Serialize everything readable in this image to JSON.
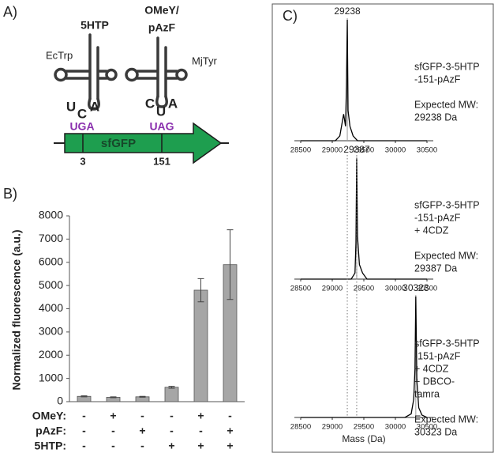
{
  "panel_labels": [
    "A)",
    "B)",
    "C)"
  ],
  "diagram": {
    "trna_1": {
      "amino_acid": "5HTP",
      "name": "EcTrp",
      "anticodon": [
        "U",
        "C",
        "A"
      ]
    },
    "trna_2": {
      "amino_acid_lines": [
        "OMeY/",
        "pAzF"
      ],
      "name": "MjTyr",
      "anticodon": [
        "C",
        "U",
        "A"
      ]
    },
    "gene": {
      "name": "sfGFP",
      "codons": [
        "UGA",
        "UAG"
      ],
      "positions": [
        "3",
        "151"
      ]
    }
  },
  "chart_data": [
    {
      "type": "bar",
      "ylabel": "Normalized fluorescence (a.u.)",
      "values": [
        230,
        190,
        210,
        620,
        4800,
        5900
      ],
      "errors": [
        20,
        20,
        20,
        40,
        500,
        1500
      ],
      "color": "#a6a6a6",
      "ylim": [
        0,
        8000
      ],
      "yticks": [
        0,
        1000,
        2000,
        3000,
        4000,
        5000,
        6000,
        7000,
        8000
      ],
      "conditions": [
        {
          "name": "OMeY:",
          "values": [
            "-",
            "+",
            "-",
            "-",
            "+",
            "-"
          ]
        },
        {
          "name": "pAzF:",
          "values": [
            "-",
            "-",
            "+",
            "-",
            "-",
            "+"
          ]
        },
        {
          "name": "5HTP:",
          "values": [
            "-",
            "-",
            "-",
            "+",
            "+",
            "+"
          ]
        }
      ]
    },
    {
      "type": "line",
      "color": "#000000",
      "peak": 29238,
      "x": [
        28500,
        29050,
        29120,
        29180,
        29210,
        29225,
        29238,
        29250,
        29280,
        29330,
        29400,
        30500
      ],
      "values": [
        0,
        0,
        4,
        22,
        12,
        45,
        100,
        25,
        12,
        4,
        0,
        0
      ],
      "xlim": [
        28500,
        30500
      ],
      "xticks": [
        28500,
        29000,
        29500,
        30000,
        30500
      ],
      "ylim": [
        0,
        100
      ],
      "label_lines": [
        "sfGFP-3-5HTP",
        "-151-pAzF"
      ],
      "expected_lines": [
        "Expected MW:",
        "29238 Da"
      ]
    },
    {
      "type": "line",
      "color": "#000000",
      "peak": 29387,
      "x": [
        28500,
        29300,
        29360,
        29375,
        29387,
        29400,
        29430,
        29480,
        29550,
        30500
      ],
      "values": [
        0,
        0,
        5,
        30,
        100,
        35,
        12,
        5,
        0,
        0
      ],
      "xlim": [
        28500,
        30500
      ],
      "xticks": [
        28500,
        29000,
        29500,
        30000,
        30500
      ],
      "ylim": [
        0,
        100
      ],
      "label_lines": [
        "sfGFP-3-5HTP",
        "-151-pAzF",
        "+ 4CDZ"
      ],
      "expected_lines": [
        "Expected MW:",
        "29387 Da"
      ]
    },
    {
      "type": "line",
      "color": "#000000",
      "peak": 30323,
      "x": [
        28500,
        30150,
        30250,
        30290,
        30310,
        30323,
        30340,
        30370,
        30420,
        30500
      ],
      "values": [
        0,
        0,
        3,
        15,
        40,
        100,
        30,
        8,
        2,
        0
      ],
      "xlim": [
        28500,
        30500
      ],
      "xticks": [
        28500,
        29000,
        29500,
        30000,
        30500
      ],
      "ylim": [
        0,
        100
      ],
      "label_lines": [
        "sfGFP-3-5HTP",
        "-151-pAzF",
        "+ 4CDZ",
        "+ DBCO-",
        "tamra"
      ],
      "expected_lines": [
        "Expected MW:",
        "30323 Da"
      ],
      "xlabel": "Mass (Da)"
    }
  ]
}
